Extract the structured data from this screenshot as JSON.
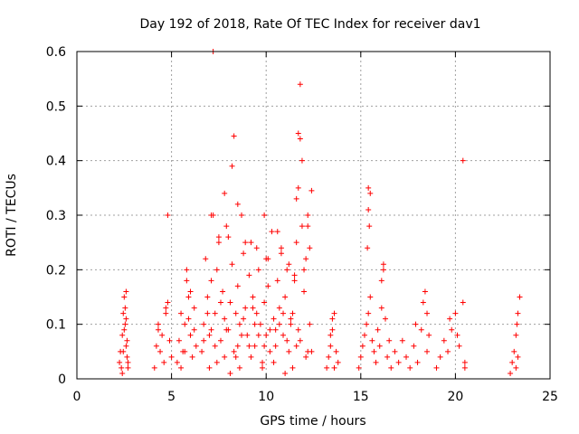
{
  "chart_data": {
    "type": "scatter",
    "title": "Day 192 of 2018, Rate Of TEC Index for receiver dav1",
    "xlabel": "GPS time / hours",
    "ylabel": "ROTI / TECUs",
    "xlim": [
      0,
      25
    ],
    "ylim": [
      0,
      0.6
    ],
    "xticks": [
      0,
      5,
      10,
      15,
      20,
      25
    ],
    "xtick_labels": [
      "0",
      "5",
      "10",
      "15",
      "20",
      "25"
    ],
    "yticks": [
      0,
      0.1,
      0.2,
      0.3,
      0.4,
      0.5,
      0.6
    ],
    "ytick_labels": [
      "0",
      "0.1",
      "0.2",
      "0.3",
      "0.4",
      "0.5",
      "0.6"
    ],
    "grid": true,
    "marker": "+",
    "color": "#ff0000",
    "series": [
      {
        "name": "dav1",
        "x": [
          2.25,
          2.3,
          2.35,
          2.4,
          2.45,
          2.5,
          2.55,
          2.6,
          2.65,
          2.7,
          2.4,
          2.5,
          2.55,
          2.6,
          2.65,
          2.7,
          2.45,
          2.6,
          4.1,
          4.2,
          4.3,
          4.4,
          4.5,
          4.6,
          4.7,
          4.8,
          4.9,
          5.0,
          4.8,
          4.7,
          4.3,
          5.3,
          5.4,
          5.5,
          5.6,
          5.7,
          5.8,
          5.9,
          6.0,
          6.1,
          6.2,
          6.3,
          5.8,
          5.9,
          6.0,
          6.2,
          5.5,
          5.7,
          6.6,
          6.7,
          6.8,
          6.9,
          7.0,
          7.1,
          7.2,
          7.3,
          7.4,
          7.5,
          7.6,
          7.7,
          7.8,
          7.9,
          8.0,
          8.1,
          8.2,
          8.3,
          8.4,
          8.5,
          8.6,
          8.7,
          8.8,
          8.9,
          9.0,
          9.1,
          9.2,
          9.3,
          9.4,
          9.5,
          9.6,
          9.7,
          9.8,
          9.9,
          10.0,
          10.1,
          10.2,
          10.3,
          10.4,
          10.5,
          10.6,
          10.7,
          10.8,
          10.9,
          11.0,
          11.1,
          11.2,
          11.3,
          11.4,
          11.5,
          11.6,
          11.7,
          11.8,
          11.9,
          12.0,
          12.1,
          12.2,
          12.3,
          12.4,
          7.2,
          11.8,
          8.3,
          11.7,
          11.9,
          8.2,
          12.4,
          7.8,
          8.5,
          7.1,
          9.9,
          10.6,
          11.6,
          12.2,
          8.0,
          7.5,
          8.9,
          9.5,
          10.1,
          10.8,
          11.2,
          11.5,
          12.0,
          12.3,
          7.0,
          7.4,
          8.1,
          8.6,
          9.2,
          9.8,
          10.4,
          11.0,
          11.4,
          6.7,
          7.3,
          7.9,
          8.4,
          8.8,
          9.1,
          9.6,
          10.2,
          10.7,
          11.1,
          11.6,
          12.1,
          6.9,
          7.6,
          8.7,
          9.3,
          9.9,
          10.5,
          11.3,
          11.8,
          12.2,
          7.1,
          7.8,
          8.5,
          9.4,
          10.0,
          10.9,
          11.7,
          13.2,
          13.3,
          13.4,
          13.5,
          13.6,
          13.7,
          13.8,
          13.4,
          13.6,
          13.5,
          14.9,
          15.0,
          15.1,
          15.2,
          15.3,
          15.4,
          15.5,
          15.6,
          15.7,
          15.8,
          15.9,
          16.0,
          16.1,
          16.2,
          16.3,
          16.4,
          16.5,
          15.4,
          15.5,
          15.4,
          15.45,
          15.35,
          16.2,
          16.1,
          16.6,
          16.8,
          17.0,
          17.2,
          17.4,
          17.6,
          17.8,
          18.0,
          18.2,
          18.4,
          18.5,
          18.6,
          18.3,
          18.5,
          17.9,
          19.0,
          19.2,
          19.4,
          19.6,
          19.8,
          20.0,
          20.2,
          20.4,
          20.5,
          19.7,
          20.1,
          20.4,
          20.5,
          22.9,
          23.0,
          23.1,
          23.2,
          23.3,
          23.4,
          23.2,
          23.3,
          23.25
        ],
        "y": [
          0.03,
          0.05,
          0.02,
          0.08,
          0.12,
          0.15,
          0.1,
          0.06,
          0.04,
          0.02,
          0.01,
          0.09,
          0.13,
          0.16,
          0.07,
          0.03,
          0.05,
          0.11,
          0.02,
          0.06,
          0.1,
          0.05,
          0.08,
          0.03,
          0.12,
          0.14,
          0.07,
          0.04,
          0.3,
          0.13,
          0.09,
          0.03,
          0.07,
          0.12,
          0.05,
          0.1,
          0.2,
          0.15,
          0.08,
          0.04,
          0.13,
          0.06,
          0.18,
          0.11,
          0.16,
          0.09,
          0.02,
          0.05,
          0.05,
          0.1,
          0.22,
          0.15,
          0.08,
          0.18,
          0.3,
          0.12,
          0.2,
          0.25,
          0.07,
          0.16,
          0.11,
          0.28,
          0.09,
          0.14,
          0.21,
          0.05,
          0.12,
          0.17,
          0.1,
          0.3,
          0.23,
          0.13,
          0.08,
          0.19,
          0.25,
          0.15,
          0.06,
          0.12,
          0.2,
          0.1,
          0.03,
          0.14,
          0.22,
          0.17,
          0.09,
          0.27,
          0.11,
          0.06,
          0.18,
          0.13,
          0.24,
          0.08,
          0.15,
          0.2,
          0.05,
          0.1,
          0.12,
          0.18,
          0.25,
          0.35,
          0.44,
          0.28,
          0.16,
          0.22,
          0.3,
          0.1,
          0.05,
          0.6,
          0.54,
          0.445,
          0.45,
          0.4,
          0.39,
          0.345,
          0.34,
          0.32,
          0.3,
          0.3,
          0.27,
          0.33,
          0.28,
          0.26,
          0.26,
          0.25,
          0.24,
          0.22,
          0.23,
          0.21,
          0.19,
          0.2,
          0.24,
          0.02,
          0.03,
          0.01,
          0.02,
          0.04,
          0.02,
          0.03,
          0.01,
          0.02,
          0.07,
          0.06,
          0.09,
          0.04,
          0.11,
          0.06,
          0.08,
          0.05,
          0.1,
          0.07,
          0.06,
          0.04,
          0.12,
          0.14,
          0.08,
          0.13,
          0.06,
          0.09,
          0.11,
          0.07,
          0.05,
          0.09,
          0.04,
          0.06,
          0.1,
          0.08,
          0.12,
          0.09,
          0.02,
          0.04,
          0.06,
          0.09,
          0.12,
          0.05,
          0.03,
          0.08,
          0.02,
          0.11,
          0.02,
          0.04,
          0.06,
          0.08,
          0.1,
          0.12,
          0.15,
          0.07,
          0.05,
          0.03,
          0.09,
          0.06,
          0.13,
          0.2,
          0.11,
          0.04,
          0.07,
          0.35,
          0.34,
          0.31,
          0.28,
          0.24,
          0.21,
          0.18,
          0.02,
          0.05,
          0.03,
          0.07,
          0.04,
          0.02,
          0.06,
          0.03,
          0.09,
          0.16,
          0.12,
          0.08,
          0.14,
          0.05,
          0.1,
          0.02,
          0.04,
          0.07,
          0.05,
          0.09,
          0.12,
          0.06,
          0.14,
          0.03,
          0.11,
          0.08,
          0.4,
          0.02,
          0.01,
          0.03,
          0.05,
          0.08,
          0.12,
          0.15,
          0.02,
          0.04,
          0.1
        ]
      }
    ]
  }
}
